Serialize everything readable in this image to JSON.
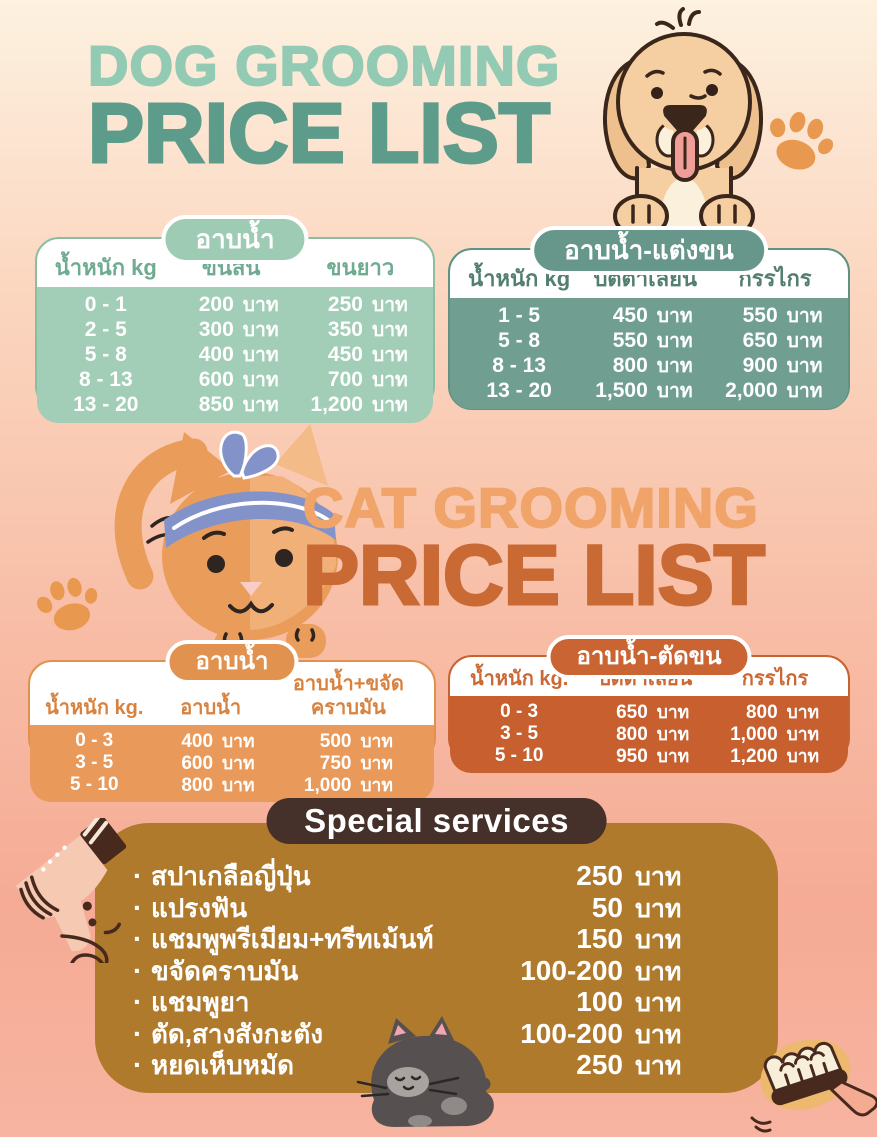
{
  "poster": {
    "dog_title_line1": "DOG GROOMING",
    "dog_title_line2": "PRICE LIST",
    "cat_title_line1": "CAT GROOMING",
    "cat_title_line2": "PRICE LIST"
  },
  "colors": {
    "background_top": "#fdf1e0",
    "background_bottom": "#f7b4a0",
    "teal_light": "#93cab4",
    "teal_dark": "#5d9c8b",
    "orange_light": "#f0a469",
    "orange_dark": "#c96a35",
    "special_box": "#b07a2d",
    "special_pill": "#46302a",
    "paw_print": "#e8984f"
  },
  "tables": [
    {
      "section": "dog",
      "pill": "อาบน้ำ",
      "columns": [
        "น้ำหนัก kg",
        "ขนสั้น",
        "ขนยาว"
      ],
      "unit": "บาท",
      "rows": [
        {
          "range": "0 - 1",
          "prices": [
            "200",
            "250"
          ]
        },
        {
          "range": "2 - 5",
          "prices": [
            "300",
            "350"
          ]
        },
        {
          "range": "5 - 8",
          "prices": [
            "400",
            "450"
          ]
        },
        {
          "range": "8 - 13",
          "prices": [
            "600",
            "700"
          ]
        },
        {
          "range": "13 - 20",
          "prices": [
            "850",
            "1,200"
          ]
        }
      ],
      "colors": {
        "pill": "#9ecbb4",
        "border": "#8abda2",
        "body": "#a2cdb6",
        "header_text": "#6fab91"
      }
    },
    {
      "section": "dog",
      "pill": "อาบน้ำ-แต่งขน",
      "columns": [
        "น้ำหนัก kg",
        "ปัตตาเลี่ยน",
        "กรรไกร"
      ],
      "unit": "บาท",
      "rows": [
        {
          "range": "1 - 5",
          "prices": [
            "450",
            "550"
          ]
        },
        {
          "range": "5 - 8",
          "prices": [
            "550",
            "650"
          ]
        },
        {
          "range": "8 - 13",
          "prices": [
            "800",
            "900"
          ]
        },
        {
          "range": "13 - 20",
          "prices": [
            "1,500",
            "2,000"
          ]
        }
      ],
      "colors": {
        "pill": "#67978a",
        "border": "#5f9184",
        "body": "#709f91",
        "header_text": "#527f71"
      }
    },
    {
      "section": "cat",
      "pill": "อาบน้ำ",
      "columns": [
        "น้ำหนัก kg.",
        "อาบน้ำ",
        "อาบน้ำ+ขจัดคราบมัน"
      ],
      "unit": "บาท",
      "rows": [
        {
          "range": "0 - 3",
          "prices": [
            "400",
            "500"
          ]
        },
        {
          "range": "3 - 5",
          "prices": [
            "600",
            "750"
          ]
        },
        {
          "range": "5 - 10",
          "prices": [
            "800",
            "1,000"
          ]
        }
      ],
      "colors": {
        "pill": "#e2924f",
        "border": "#e0914f",
        "body": "#e9995a",
        "header_text": "#d8823f"
      }
    },
    {
      "section": "cat",
      "pill": "อาบน้ำ-ตัดขน",
      "columns": [
        "น้ำหนัก kg.",
        "ปัตตาเลี่ยน",
        "กรรไกร"
      ],
      "unit": "บาท",
      "rows": [
        {
          "range": "0 - 3",
          "prices": [
            "650",
            "800"
          ]
        },
        {
          "range": "3 - 5",
          "prices": [
            "800",
            "1,000"
          ]
        },
        {
          "range": "5 - 10",
          "prices": [
            "950",
            "1,200"
          ]
        }
      ],
      "colors": {
        "pill": "#cb6433",
        "border": "#c96231",
        "body": "#c75f2e",
        "header_text": "#ca6836"
      }
    }
  ],
  "special": {
    "title": "Special services",
    "unit": "บาท",
    "bullet": "·",
    "items": [
      {
        "label": "สปาเกลือญี่ปุ่น",
        "price": "250"
      },
      {
        "label": "แปรงฟัน",
        "price": "50"
      },
      {
        "label": "แชมพูพรีเมียม+ทรีทเม้นท์",
        "price": "150"
      },
      {
        "label": "ขจัดคราบมัน",
        "price": "100-200"
      },
      {
        "label": "แชมพูยา",
        "price": "100"
      },
      {
        "label": "ตัด,สางสังกะตัง",
        "price": "100-200"
      },
      {
        "label": "หยดเห็บหมัด",
        "price": "250"
      }
    ]
  }
}
